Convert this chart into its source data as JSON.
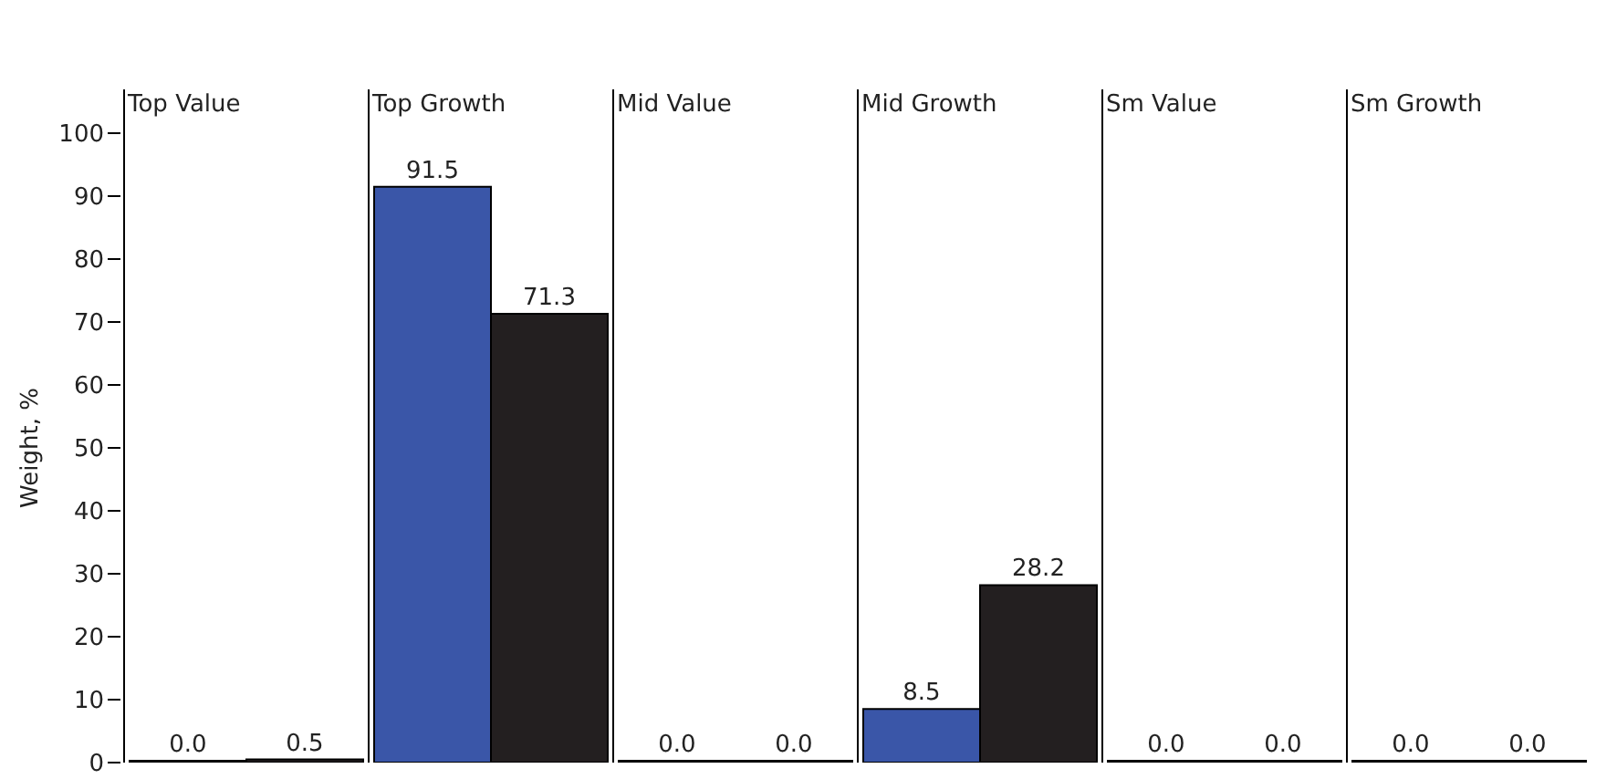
{
  "chart_data": {
    "type": "bar",
    "ylabel": "Weight, %",
    "categories": [
      "Top Value",
      "Top Growth",
      "Mid Value",
      "Mid Growth",
      "Sm Value",
      "Sm Growth"
    ],
    "series": [
      {
        "color": "#3a56a8",
        "values": [
          0.0,
          91.5,
          0.0,
          8.5,
          0.0,
          0.0
        ],
        "value_labels": [
          "0.0",
          "91.5",
          "0.0",
          "8.5",
          "0.0",
          "0.0"
        ]
      },
      {
        "color": "#231f20",
        "values": [
          0.5,
          71.3,
          0.0,
          28.2,
          0.0,
          0.0
        ],
        "value_labels": [
          "0.5",
          "71.3",
          "0.0",
          "28.2",
          "0.0",
          "0.0"
        ]
      }
    ],
    "ylim": [
      0,
      100
    ],
    "yticks": [
      0,
      10,
      20,
      30,
      40,
      50,
      60,
      70,
      80,
      90,
      100
    ],
    "grid": false,
    "legend": false
  }
}
